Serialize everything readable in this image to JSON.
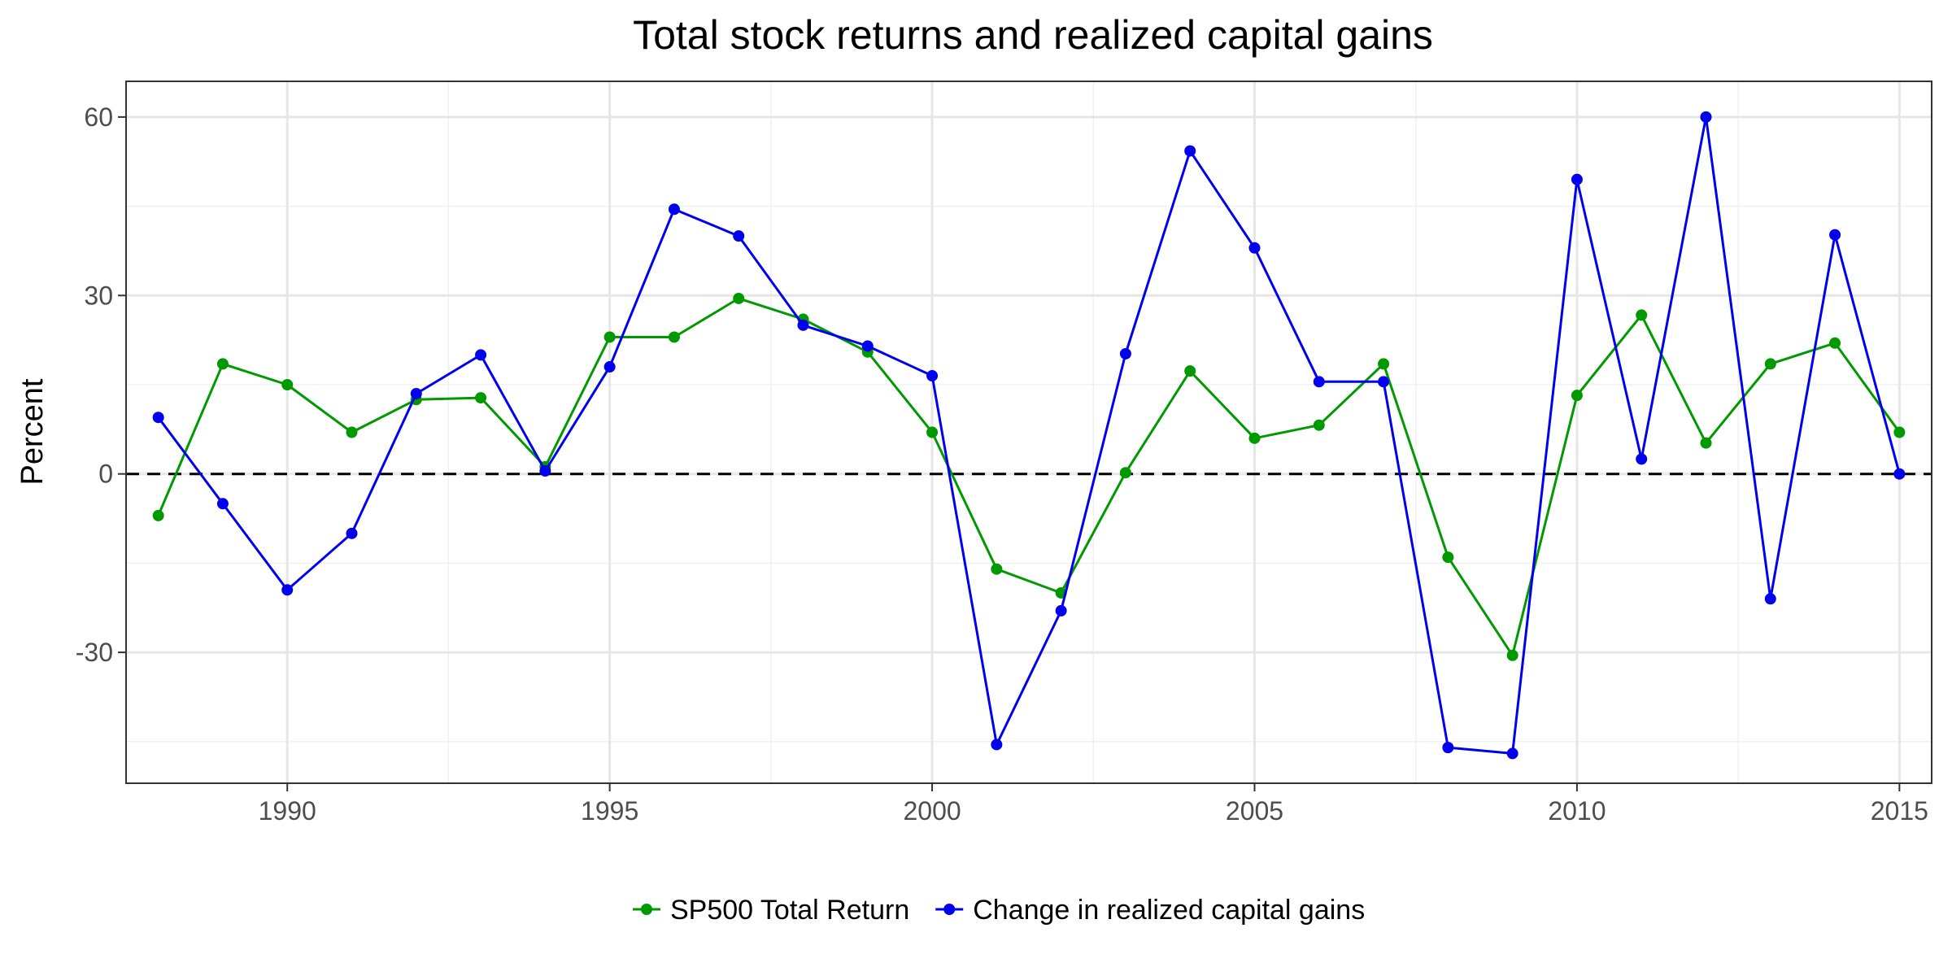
{
  "chart_data": {
    "type": "line",
    "title": "Total stock returns and realized capital gains",
    "xlabel": "",
    "ylabel": "Percent",
    "xlim": [
      1987.5,
      2015.5
    ],
    "ylim": [
      -52,
      66
    ],
    "x_ticks": [
      1990,
      1995,
      2000,
      2005,
      2010,
      2015
    ],
    "x_tick_labels": [
      "1990",
      "1995",
      "2000",
      "2005",
      "2010",
      "2015"
    ],
    "y_ticks": [
      -30,
      0,
      30,
      60
    ],
    "y_tick_labels": [
      "-30",
      "0",
      "30",
      "60"
    ],
    "x_minor_ticks": [
      1987.5,
      1992.5,
      1997.5,
      2002.5,
      2007.5,
      2012.5
    ],
    "y_minor_ticks": [
      -45,
      -15,
      15,
      45
    ],
    "grid": true,
    "reference_line": {
      "y": 0,
      "style": "dashed",
      "color": "#000000"
    },
    "legend_position": "bottom",
    "x": [
      1988,
      1989,
      1990,
      1991,
      1992,
      1993,
      1994,
      1995,
      1996,
      1997,
      1998,
      1999,
      2000,
      2001,
      2002,
      2003,
      2004,
      2005,
      2006,
      2007,
      2008,
      2009,
      2010,
      2011,
      2012,
      2013,
      2014,
      2015
    ],
    "series": [
      {
        "name": "SP500 Total Return",
        "color": "#009900",
        "values": [
          -7,
          18.5,
          15,
          7,
          12.5,
          12.8,
          1.2,
          23,
          23,
          29.5,
          26,
          20.5,
          7,
          -16,
          -20,
          0.2,
          17.3,
          6,
          8.2,
          18.5,
          -14,
          -30.5,
          13.2,
          26.7,
          5.2,
          18.5,
          22,
          7
        ]
      },
      {
        "name": "Change in realized capital gains",
        "color": "#0000ee",
        "values": [
          9.5,
          -5,
          -19.5,
          -10,
          13.5,
          20,
          0.5,
          18,
          44.5,
          40,
          25,
          21.5,
          16.5,
          -45.5,
          -23,
          20.2,
          54.3,
          38,
          15.5,
          15.5,
          -46,
          -47,
          49.5,
          2.5,
          60,
          -21,
          40.2,
          0
        ]
      }
    ]
  }
}
